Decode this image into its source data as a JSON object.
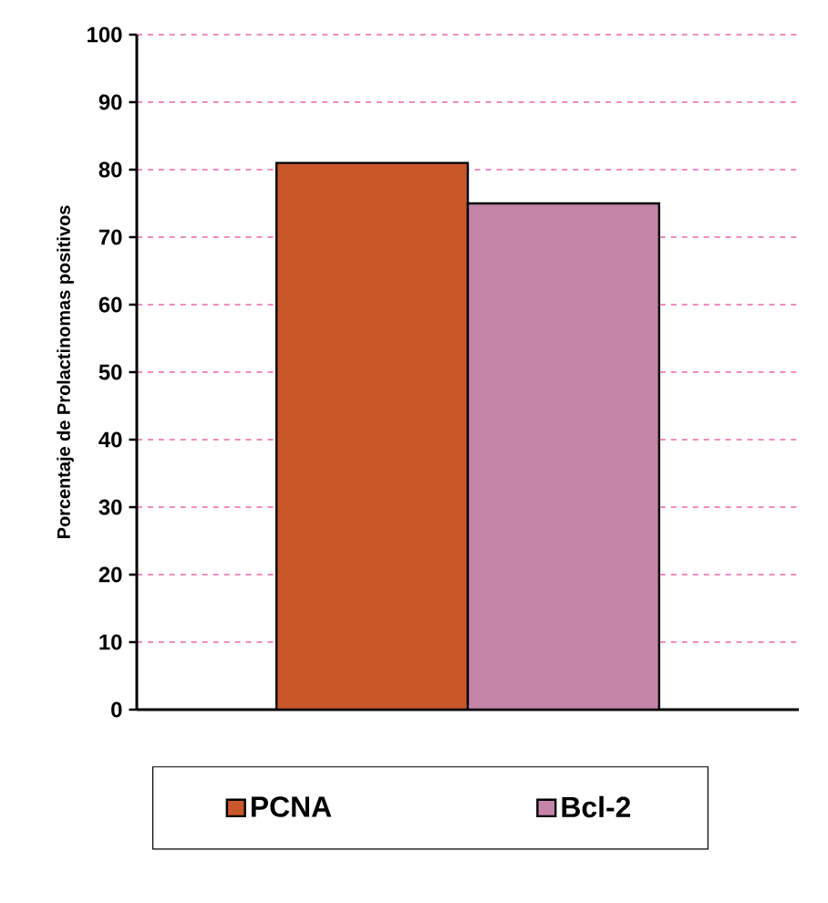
{
  "chart_data": {
    "type": "bar",
    "ylabel": "Porcentaje de Prolactinomas positivos",
    "categories": [
      null
    ],
    "series": [
      {
        "name": "PCNA",
        "color": "#c8582a",
        "values": [
          81
        ]
      },
      {
        "name": "Bcl-2",
        "color": "#c484a8",
        "values": [
          75
        ]
      }
    ],
    "ylim": [
      0,
      100
    ],
    "yticks": [
      0,
      10,
      20,
      30,
      40,
      50,
      60,
      70,
      80,
      90,
      100
    ],
    "grid": "y",
    "legend": "bottom"
  }
}
